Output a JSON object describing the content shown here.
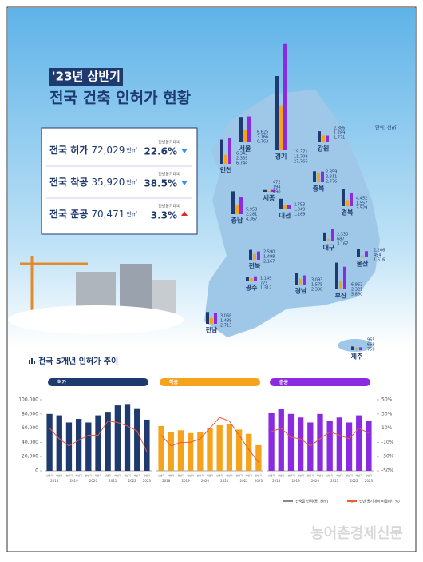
{
  "header": {
    "period": "'23년 상반기",
    "title": "전국 건축 인허가 현황"
  },
  "summary": [
    {
      "label": "전국 허가",
      "value": 72029,
      "value_label": "72,029",
      "unit": "천㎡",
      "change_caption": "전년동기대비",
      "change": 22.6,
      "change_label": "22.6%",
      "direction": "down"
    },
    {
      "label": "전국 착공",
      "value": 35920,
      "value_label": "35,920",
      "unit": "천㎡",
      "change_caption": "전년동기대비",
      "change": 38.5,
      "change_label": "38.5%",
      "direction": "down"
    },
    {
      "label": "전국 준공",
      "value": 70471,
      "value_label": "70,471",
      "unit": "천㎡",
      "change_caption": "전년동기대비",
      "change": 3.3,
      "change_label": "3.3%",
      "direction": "up"
    }
  ],
  "map": {
    "unit": "단위: 천㎡",
    "colors": [
      "#1f3a6e",
      "#f5a21c",
      "#8a2be2"
    ],
    "regions": [
      {
        "name": "서울",
        "values": [
          6625,
          3166,
          6763
        ],
        "value_labels": [
          "6,625",
          "3,166",
          "6,763"
        ]
      },
      {
        "name": "인천",
        "values": [
          6343,
          2339,
          6744
        ],
        "value_labels": [
          "6,343",
          "2,339",
          "6,744"
        ]
      },
      {
        "name": "경기",
        "values": [
          19371,
          11709,
          27766
        ],
        "value_labels": [
          "19,371",
          "11,709",
          "27,766"
        ]
      },
      {
        "name": "강원",
        "values": [
          2886,
          1789,
          1771
        ],
        "value_labels": [
          "2,886",
          "1,789",
          "1,771"
        ]
      },
      {
        "name": "충북",
        "values": [
          2859,
          2311,
          2776
        ],
        "value_labels": [
          "2,859",
          "2,311",
          "2,776"
        ]
      },
      {
        "name": "세종",
        "values": [
          472,
          194,
          490
        ]
      },
      {
        "name": "대전",
        "values": [
          2753,
          1049,
          1189
        ],
        "value_labels": [
          "2,753",
          "1,049",
          "1,189"
        ]
      },
      {
        "name": "충남",
        "values": [
          5958,
          2281,
          4367
        ],
        "value_labels": [
          "5,958",
          "2,281",
          "4,367"
        ]
      },
      {
        "name": "경북",
        "values": [
          4452,
          1557,
          3529
        ],
        "value_labels": [
          "4,452",
          "1,557",
          "3,529"
        ]
      },
      {
        "name": "대구",
        "values": [
          2330,
          687,
          3167
        ],
        "value_labels": [
          "2,330",
          "687",
          "3,167"
        ]
      },
      {
        "name": "전북",
        "values": [
          2590,
          1498,
          2167
        ],
        "value_labels": [
          "2,590",
          "1,498",
          "2,167"
        ]
      },
      {
        "name": "울산",
        "values": [
          2206,
          494,
          1616
        ],
        "value_labels": [
          "2,206",
          "494",
          "1,616"
        ]
      },
      {
        "name": "광주",
        "values": [
          1149,
          775,
          1312
        ],
        "value_labels": [
          "1,149",
          "775",
          "1,312"
        ]
      },
      {
        "name": "경남",
        "values": [
          3093,
          1575,
          2398
        ],
        "value_labels": [
          "3,093",
          "1,575",
          "2,398"
        ]
      },
      {
        "name": "부산",
        "values": [
          6962,
          2321,
          5890
        ],
        "value_labels": [
          "6,962",
          "2,321",
          "5,890"
        ]
      },
      {
        "name": "전남",
        "values": [
          3068,
          1488,
          2713
        ],
        "value_labels": [
          "3,068",
          "1,488",
          "2,713"
        ]
      },
      {
        "name": "제주",
        "values": [
          965,
          668,
          750
        ]
      }
    ]
  },
  "chart_data": {
    "type": "bar",
    "title": "전국 5개년 인허가 추이",
    "categories": [
      "상반기",
      "하반기",
      "상반기",
      "하반기",
      "상반기",
      "하반기",
      "상반기",
      "하반기",
      "상반기",
      "하반기",
      "상반기"
    ],
    "years": [
      "2018",
      "2019",
      "2020",
      "2021",
      "2022",
      "2023"
    ],
    "ylim": [
      0,
      100000
    ],
    "yticks": [
      0,
      {
        "value": 20000,
        "label": "20,000"
      },
      {
        "value": 40000,
        "label": "40,000"
      },
      {
        "value": 60000,
        "label": "60,000"
      },
      {
        "value": 80000,
        "label": "80,000"
      },
      {
        "value": 100000,
        "label": "100,000"
      }
    ],
    "y2lim": [
      -50,
      50
    ],
    "y2ticks": [
      {
        "value": -50,
        "label": "-50%"
      },
      {
        "value": -30,
        "label": "-30%"
      },
      {
        "value": -10,
        "label": "-10%"
      },
      {
        "value": 10,
        "label": "10%"
      },
      {
        "value": 30,
        "label": "30%"
      },
      {
        "value": 50,
        "label": "50%"
      }
    ],
    "panels": [
      {
        "title": "허가",
        "series": [
          {
            "color": "#1f3a6e",
            "values": [
              80000,
              78000,
              68000,
              73000,
              68000,
              78000,
              83000,
              92000,
              94000,
              88000,
              72000
            ]
          },
          {
            "color": "#ee5a3a",
            "axis": "y2",
            "values": [
              10,
              -5,
              -15,
              -7,
              0,
              0,
              20,
              18,
              13,
              6,
              -23
            ]
          }
        ]
      },
      {
        "title": "착공",
        "series": [
          {
            "color": "#f5a21c",
            "values": [
              63000,
              55000,
              57000,
              53000,
              55000,
              60000,
              64000,
              66000,
              58000,
              52000,
              36000
            ]
          },
          {
            "color": "#ee5a3a",
            "axis": "y2",
            "values": [
              0,
              -15,
              -10,
              -10,
              -5,
              10,
              25,
              20,
              0,
              -20,
              -38
            ]
          }
        ]
      },
      {
        "title": "준공",
        "series": [
          {
            "color": "#8a2be2",
            "values": [
              82000,
              87000,
              80000,
              75000,
              68000,
              80000,
              70000,
              75000,
              68000,
              78000,
              70000
            ]
          },
          {
            "color": "#ee5a3a",
            "axis": "y2",
            "values": [
              5,
              10,
              -3,
              -5,
              -15,
              -5,
              5,
              0,
              -5,
              10,
              3
            ]
          }
        ]
      }
    ],
    "legend": [
      {
        "label": "건축물 면적(동, 천㎡)",
        "color": "#888888"
      },
      {
        "label": "전년 동기대비 비율(우, %)",
        "color": "#ee5a3a"
      }
    ]
  },
  "footer": {
    "source": "농어촌경제신문"
  }
}
